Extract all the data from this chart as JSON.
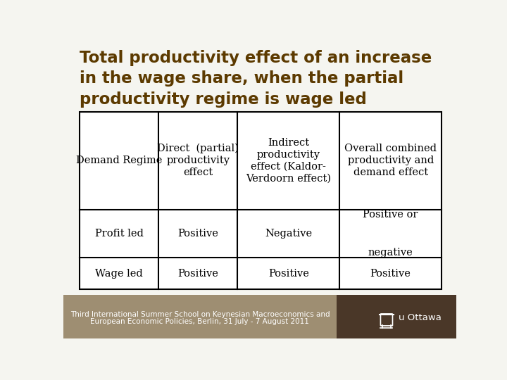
{
  "title": "Total productivity effect of an increase\nin the wage share, when the partial\nproductivity regime is wage led",
  "title_color": "#5C3A00",
  "title_fontsize": 16.5,
  "bg_color": "#F5F5F0",
  "table_bg": "#FFFFFF",
  "footer_bg_left": "#9E8E72",
  "footer_bg_right": "#4A3728",
  "footer_text_line1": "Third International Summer School on Keynesian Macroeconomics and",
  "footer_text_line2": "European Economic Policies, Berlin, 31 July - 7 August 2011",
  "footer_text_color": "#FFFFFF",
  "logo_text": "u Ottawa",
  "logo_color": "#FFFFFF",
  "cell_text_color": "#000000",
  "table_line_color": "#000000",
  "col_header_line1": [
    "Demand Regime",
    "Direct  (partial)",
    "Indirect",
    "Overall combined"
  ],
  "col_header_line2": [
    "",
    "productivity",
    "productivity",
    "productivity and"
  ],
  "col_header_line3": [
    "",
    "effect",
    "effect (Kaldor-",
    "demand effect"
  ],
  "col_header_line4": [
    "",
    "",
    "Verdoorn effect)",
    ""
  ],
  "rows": [
    [
      "Profit led",
      "Positive",
      "Negative",
      "Positive or\n\nnegative"
    ],
    [
      "Wage led",
      "Positive",
      "Positive",
      "Positive"
    ]
  ],
  "table_fontsize": 10.5,
  "title_font": "DejaVu Sans",
  "table_font": "DejaVu Serif"
}
